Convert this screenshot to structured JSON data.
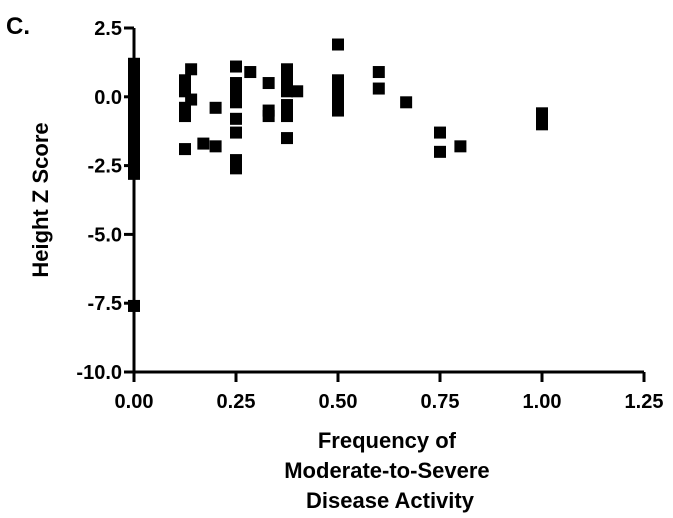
{
  "panel_label": "C.",
  "chart_data": {
    "type": "scatter",
    "xlabel": [
      "Frequency of",
      "Moderate-to-Severe",
      "Disease Activity"
    ],
    "ylabel": "Height Z Score",
    "xlim": [
      0,
      1.25
    ],
    "ylim": [
      -10,
      2.5
    ],
    "x_ticks": [
      "0.00",
      "0.25",
      "0.50",
      "0.75",
      "1.00",
      "1.25"
    ],
    "y_ticks": [
      "2.5",
      "0.0",
      "-2.5",
      "-5.0",
      "-7.5",
      "-10.0"
    ],
    "grid": false,
    "marker": "square",
    "color": "#000000",
    "points": [
      [
        0,
        1.2
      ],
      [
        0,
        1.0
      ],
      [
        0,
        0.8
      ],
      [
        0,
        0.6
      ],
      [
        0,
        0.4
      ],
      [
        0,
        0.2
      ],
      [
        0,
        0.0
      ],
      [
        0,
        -0.2
      ],
      [
        0,
        -0.4
      ],
      [
        0,
        -0.6
      ],
      [
        0,
        -0.8
      ],
      [
        0,
        -1.0
      ],
      [
        0,
        -1.2
      ],
      [
        0,
        -1.4
      ],
      [
        0,
        -1.6
      ],
      [
        0,
        -1.8
      ],
      [
        0,
        -2.0
      ],
      [
        0,
        -2.2
      ],
      [
        0,
        -2.4
      ],
      [
        0,
        -2.6
      ],
      [
        0,
        -2.8
      ],
      [
        0,
        -7.6
      ],
      [
        0.125,
        0.6
      ],
      [
        0.125,
        0.2
      ],
      [
        0.125,
        -0.4
      ],
      [
        0.125,
        -0.7
      ],
      [
        0.125,
        -1.9
      ],
      [
        0.14,
        1.0
      ],
      [
        0.14,
        -0.1
      ],
      [
        0.17,
        -1.7
      ],
      [
        0.2,
        -0.4
      ],
      [
        0.2,
        -1.8
      ],
      [
        0.25,
        1.1
      ],
      [
        0.25,
        0.5
      ],
      [
        0.25,
        0.2
      ],
      [
        0.25,
        -0.2
      ],
      [
        0.25,
        -0.8
      ],
      [
        0.25,
        -1.3
      ],
      [
        0.25,
        -2.3
      ],
      [
        0.25,
        -2.6
      ],
      [
        0.285,
        0.9
      ],
      [
        0.33,
        0.5
      ],
      [
        0.33,
        -0.5
      ],
      [
        0.33,
        -0.7
      ],
      [
        0.375,
        1.0
      ],
      [
        0.375,
        0.6
      ],
      [
        0.375,
        0.2
      ],
      [
        0.375,
        -0.3
      ],
      [
        0.375,
        -0.7
      ],
      [
        0.375,
        -1.5
      ],
      [
        0.4,
        0.2
      ],
      [
        0.5,
        1.9
      ],
      [
        0.5,
        0.6
      ],
      [
        0.5,
        0.3
      ],
      [
        0.5,
        0.0
      ],
      [
        0.5,
        -0.2
      ],
      [
        0.5,
        -0.5
      ],
      [
        0.6,
        0.9
      ],
      [
        0.6,
        0.3
      ],
      [
        0.667,
        -0.2
      ],
      [
        0.75,
        -1.3
      ],
      [
        0.75,
        -2.0
      ],
      [
        0.8,
        -1.8
      ],
      [
        1.0,
        -0.6
      ],
      [
        1.0,
        -0.8
      ],
      [
        1.0,
        -1.0
      ]
    ]
  }
}
